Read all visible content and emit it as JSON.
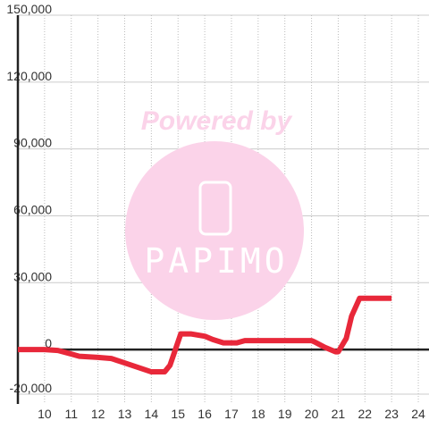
{
  "chart_data": {
    "type": "line",
    "watermark": [
      "Powered by",
      "PAPIMO"
    ],
    "x": [
      9,
      10,
      10.5,
      11,
      11.3,
      12,
      12.5,
      13,
      13.5,
      14,
      14.5,
      14.7,
      14.9,
      15.1,
      15.5,
      16,
      16.3,
      16.7,
      17.2,
      17.5,
      18,
      19,
      20,
      20.1,
      20.5,
      20.9,
      21,
      21.3,
      21.5,
      21.8,
      23
    ],
    "series": [
      {
        "color": "#e8283a",
        "values": [
          0,
          0,
          -400,
          -2000,
          -3000,
          -3500,
          -4000,
          -6000,
          -8000,
          -10000,
          -10000,
          -7000,
          0,
          7000,
          7000,
          6000,
          4500,
          3000,
          3000,
          4000,
          4000,
          4000,
          4000,
          3500,
          1000,
          -1000,
          -1000,
          5000,
          15000,
          23000,
          23000
        ]
      }
    ],
    "xlim": [
      9,
      24.4
    ],
    "xticks": [
      10,
      11,
      12,
      13,
      14,
      15,
      16,
      17,
      18,
      19,
      20,
      21,
      22,
      23,
      24
    ],
    "ylim": [
      -20000,
      150000
    ],
    "yticks": [
      {
        "value": -20000,
        "label": "-20,000"
      },
      0,
      {
        "value": 30000,
        "label": "30,000"
      },
      {
        "value": 60000,
        "label": "60,000"
      },
      {
        "value": 90000,
        "label": "90,000"
      },
      {
        "value": 120000,
        "label": "120,000"
      },
      {
        "value": 150000,
        "label": "150,000"
      }
    ],
    "grid": true
  }
}
